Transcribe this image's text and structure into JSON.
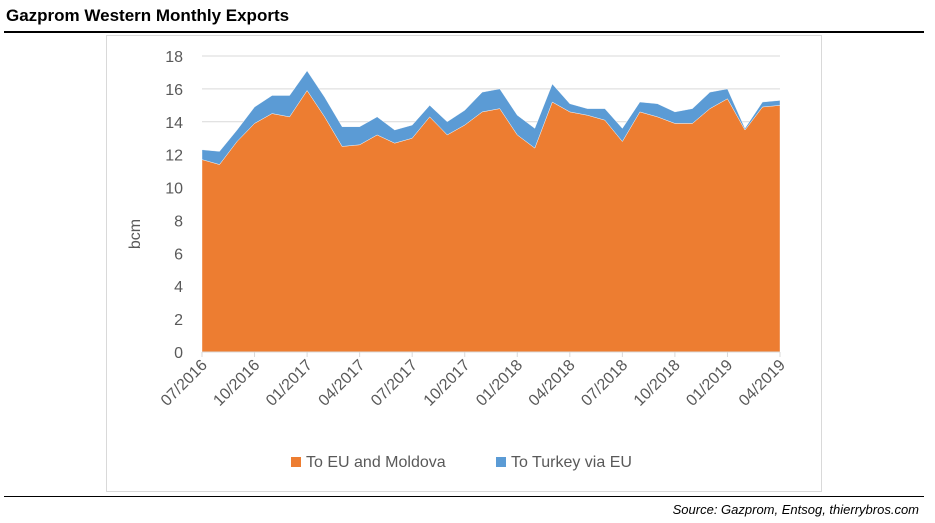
{
  "title": "Gazprom Western Monthly Exports",
  "source": "Source: Gazprom, Entsog, thierrybros.com",
  "chart_data": {
    "type": "area",
    "stacked": true,
    "title": "Gazprom Western Monthly Exports",
    "xlabel": "",
    "ylabel": "bcm",
    "ylim": [
      0,
      18
    ],
    "yticks": [
      0,
      2,
      4,
      6,
      8,
      10,
      12,
      14,
      16,
      18
    ],
    "x": [
      "07/2016",
      "08/2016",
      "09/2016",
      "10/2016",
      "11/2016",
      "12/2016",
      "01/2017",
      "02/2017",
      "03/2017",
      "04/2017",
      "05/2017",
      "06/2017",
      "07/2017",
      "08/2017",
      "09/2017",
      "10/2017",
      "11/2017",
      "12/2017",
      "01/2018",
      "02/2018",
      "03/2018",
      "04/2018",
      "05/2018",
      "06/2018",
      "07/2018",
      "08/2018",
      "09/2018",
      "10/2018",
      "11/2018",
      "12/2018",
      "01/2019",
      "02/2019",
      "03/2019",
      "04/2019"
    ],
    "xtick_labels": [
      "07/2016",
      "10/2016",
      "01/2017",
      "04/2017",
      "07/2017",
      "10/2017",
      "01/2018",
      "04/2018",
      "07/2018",
      "10/2018",
      "01/2019",
      "04/2019"
    ],
    "grid": true,
    "legend": "bottom",
    "series": [
      {
        "name": "To EU and Moldova",
        "color": "#ed7d31",
        "values": [
          11.7,
          11.4,
          12.8,
          13.9,
          14.5,
          14.3,
          15.9,
          14.3,
          12.5,
          12.6,
          13.2,
          12.7,
          13.0,
          14.3,
          13.2,
          13.8,
          14.6,
          14.8,
          13.2,
          12.4,
          15.2,
          14.6,
          14.4,
          14.1,
          12.8,
          14.6,
          14.3,
          13.9,
          13.9,
          14.8,
          15.4,
          13.5,
          14.9,
          15.0
        ]
      },
      {
        "name": "To Turkey via EU",
        "color": "#5b9bd5",
        "values": [
          0.6,
          0.8,
          0.7,
          1.0,
          1.1,
          1.3,
          1.2,
          1.2,
          1.2,
          1.1,
          1.1,
          0.8,
          0.8,
          0.7,
          0.8,
          0.9,
          1.2,
          1.2,
          1.2,
          1.2,
          1.1,
          0.5,
          0.4,
          0.7,
          0.8,
          0.6,
          0.8,
          0.7,
          0.9,
          1.0,
          0.6,
          0.1,
          0.3,
          0.3
        ]
      }
    ]
  }
}
